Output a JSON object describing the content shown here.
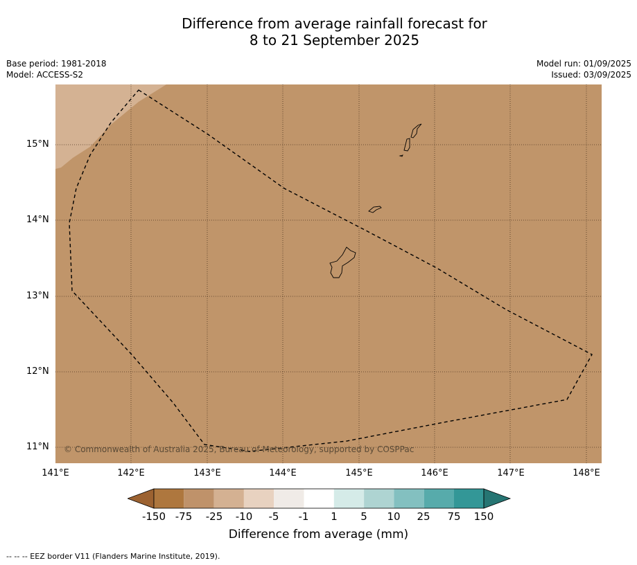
{
  "title": {
    "line1": "Difference from average rainfall forecast for",
    "line2": "8 to 21 September 2025"
  },
  "meta_left": {
    "base_period": "Base period: 1981-2018",
    "model": "Model: ACCESS-S2"
  },
  "meta_right": {
    "model_run": "Model run: 01/09/2025",
    "issued": "Issued: 03/09/2025"
  },
  "map": {
    "lat_labels": [
      "15°N",
      "14°N",
      "13°N",
      "12°N",
      "11°N"
    ],
    "lon_labels": [
      "141°E",
      "142°E",
      "143°E",
      "144°E",
      "145°E",
      "146°E",
      "147°E",
      "148°E"
    ],
    "copyright": "© Commonwealth of Australia 2025, Bureau of Meteorology, supported by COSPPac",
    "colors": {
      "main_fill": "#c0956a",
      "light_fill": "#d4b293",
      "grid": "#4a3520",
      "border": "#000000"
    }
  },
  "colorbar": {
    "ticks": [
      "-150",
      "-75",
      "-25",
      "-10",
      "-5",
      "-1",
      "1",
      "5",
      "10",
      "25",
      "75",
      "150"
    ],
    "colors": [
      "#9c6231",
      "#ae773e",
      "#bf926a",
      "#d4b192",
      "#e8d2c0",
      "#f0ebe7",
      "#ffffff",
      "#d5ebe8",
      "#aed4d2",
      "#83c0c0",
      "#57abab",
      "#339797",
      "#267573"
    ],
    "title": "Difference from average (mm)"
  },
  "footnote": "--  --  -- EEZ border V11 (Flanders Marine Institute, 2019)."
}
